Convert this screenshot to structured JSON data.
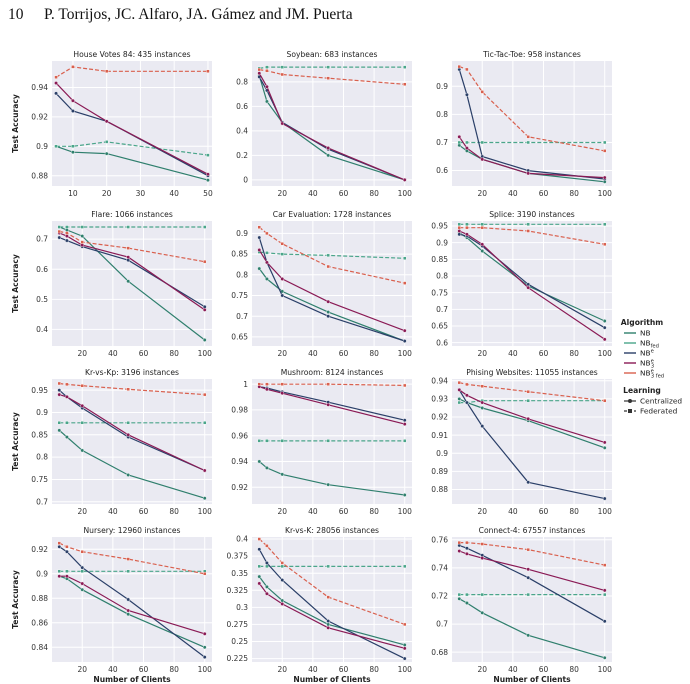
{
  "header": {
    "page_number": "10",
    "authors": "P. Torrijos, JC. Alfaro, JA. Gámez and JM. Puerta"
  },
  "colors": {
    "plot_bg": "#eaeaf2",
    "grid": "#ffffff"
  },
  "legend": {
    "algorithm_title": "Algorithm",
    "algorithms": [
      {
        "base": "NB",
        "sub": "",
        "sup": "",
        "color": "#2f7f6d"
      },
      {
        "base": "NB",
        "sub": "fed",
        "sup": "",
        "color": "#4aa58a"
      },
      {
        "base": "NB",
        "sub": "",
        "sup": "e",
        "color": "#2a3f68"
      },
      {
        "base": "NB",
        "sub": "3",
        "sup": "e",
        "color": "#8a1a55"
      },
      {
        "base": "NB",
        "sub": "3 fed",
        "sup": "e",
        "color": "#d9604e"
      }
    ],
    "learning_title": "Learning",
    "learning": [
      "Centralized",
      "Federated"
    ]
  },
  "chart_data": [
    {
      "type": "line",
      "title": "House Votes 84: 435 instances",
      "ylabel": "Test Accuracy",
      "xlabel": "",
      "x": [
        5,
        10,
        20,
        50
      ],
      "xticks": [
        10,
        20,
        30,
        40,
        50
      ],
      "xlim": [
        3.8,
        51.2
      ],
      "yticks": [
        0.88,
        0.9,
        0.92,
        0.94
      ],
      "ylim": [
        0.873,
        0.958
      ],
      "series": [
        {
          "name": "NB",
          "learning": "Centralized",
          "values": [
            0.9,
            0.896,
            0.895,
            0.877
          ]
        },
        {
          "name": "NB_fed",
          "learning": "Federated",
          "values": [
            0.9,
            0.9,
            0.903,
            0.894
          ]
        },
        {
          "name": "NB^e",
          "learning": "Centralized",
          "values": [
            0.936,
            0.924,
            0.917,
            0.88
          ]
        },
        {
          "name": "NB^e_3",
          "learning": "Centralized",
          "values": [
            0.943,
            0.931,
            0.917,
            0.881
          ]
        },
        {
          "name": "NB^e_3 fed",
          "learning": "Federated",
          "values": [
            0.947,
            0.954,
            0.951,
            0.951
          ]
        }
      ]
    },
    {
      "type": "line",
      "title": "Soybean: 683 instances",
      "ylabel": "",
      "xlabel": "",
      "x": [
        5,
        10,
        20,
        50,
        100
      ],
      "xticks": [
        20,
        40,
        60,
        80,
        100
      ],
      "xlim": [
        0.25,
        104.75
      ],
      "yticks": [
        0.0,
        0.2,
        0.4,
        0.6,
        0.8
      ],
      "ylim": [
        -0.05,
        0.97
      ],
      "series": [
        {
          "name": "NB",
          "learning": "Centralized",
          "values": [
            0.85,
            0.64,
            0.47,
            0.2,
            0.0
          ]
        },
        {
          "name": "NB_fed",
          "learning": "Federated",
          "values": [
            0.91,
            0.92,
            0.92,
            0.92,
            0.92
          ]
        },
        {
          "name": "NB^e",
          "learning": "Centralized",
          "values": [
            0.84,
            0.73,
            0.47,
            0.25,
            0.0
          ]
        },
        {
          "name": "NB^e_3",
          "learning": "Centralized",
          "values": [
            0.87,
            0.76,
            0.46,
            0.26,
            0.0
          ]
        },
        {
          "name": "NB^e_3 fed",
          "learning": "Federated",
          "values": [
            0.9,
            0.89,
            0.86,
            0.83,
            0.78
          ]
        }
      ]
    },
    {
      "type": "line",
      "title": "Tic-Tac-Toe: 958 instances",
      "ylabel": "",
      "xlabel": "",
      "x": [
        5,
        10,
        20,
        50,
        100
      ],
      "xticks": [
        20,
        40,
        60,
        80,
        100
      ],
      "xlim": [
        0.25,
        104.75
      ],
      "yticks": [
        0.6,
        0.7,
        0.8,
        0.9
      ],
      "ylim": [
        0.545,
        0.99
      ],
      "series": [
        {
          "name": "NB",
          "learning": "Centralized",
          "values": [
            0.69,
            0.67,
            0.64,
            0.59,
            0.56
          ]
        },
        {
          "name": "NB_fed",
          "learning": "Federated",
          "values": [
            0.7,
            0.7,
            0.7,
            0.7,
            0.7
          ]
        },
        {
          "name": "NB^e",
          "learning": "Centralized",
          "values": [
            0.96,
            0.87,
            0.65,
            0.6,
            0.57
          ]
        },
        {
          "name": "NB^e_3",
          "learning": "Centralized",
          "values": [
            0.72,
            0.68,
            0.64,
            0.59,
            0.575
          ]
        },
        {
          "name": "NB^e_3 fed",
          "learning": "Federated",
          "values": [
            0.97,
            0.96,
            0.88,
            0.72,
            0.67
          ]
        }
      ]
    },
    {
      "type": "line",
      "title": "Flare: 1066 instances",
      "ylabel": "Test Accuracy",
      "xlabel": "",
      "x": [
        5,
        10,
        20,
        50,
        100
      ],
      "xticks": [
        20,
        40,
        60,
        80,
        100
      ],
      "xlim": [
        0.25,
        104.75
      ],
      "yticks": [
        0.4,
        0.5,
        0.6,
        0.7
      ],
      "ylim": [
        0.345,
        0.76
      ],
      "series": [
        {
          "name": "NB",
          "learning": "Centralized",
          "values": [
            0.74,
            0.73,
            0.71,
            0.56,
            0.365
          ]
        },
        {
          "name": "NB_fed",
          "learning": "Federated",
          "values": [
            0.74,
            0.74,
            0.74,
            0.74,
            0.74
          ]
        },
        {
          "name": "NB^e",
          "learning": "Centralized",
          "values": [
            0.705,
            0.695,
            0.675,
            0.63,
            0.475
          ]
        },
        {
          "name": "NB^e_3",
          "learning": "Centralized",
          "values": [
            0.72,
            0.71,
            0.68,
            0.64,
            0.465
          ]
        },
        {
          "name": "NB^e_3 fed",
          "learning": "Federated",
          "values": [
            0.725,
            0.72,
            0.69,
            0.67,
            0.625
          ]
        }
      ]
    },
    {
      "type": "line",
      "title": "Car Evaluation: 1728 instances",
      "ylabel": "",
      "xlabel": "",
      "x": [
        5,
        10,
        20,
        50,
        100
      ],
      "xticks": [
        20,
        40,
        60,
        80,
        100
      ],
      "xlim": [
        0.25,
        104.75
      ],
      "yticks": [
        0.65,
        0.7,
        0.75,
        0.8,
        0.85,
        0.9
      ],
      "ylim": [
        0.628,
        0.93
      ],
      "series": [
        {
          "name": "NB",
          "learning": "Centralized",
          "values": [
            0.815,
            0.79,
            0.76,
            0.71,
            0.64
          ]
        },
        {
          "name": "NB_fed",
          "learning": "Federated",
          "values": [
            0.855,
            0.853,
            0.85,
            0.847,
            0.84
          ]
        },
        {
          "name": "NB^e",
          "learning": "Centralized",
          "values": [
            0.89,
            0.83,
            0.75,
            0.7,
            0.64
          ]
        },
        {
          "name": "NB^e_3",
          "learning": "Centralized",
          "values": [
            0.86,
            0.83,
            0.79,
            0.735,
            0.665
          ]
        },
        {
          "name": "NB^e_3 fed",
          "learning": "Federated",
          "values": [
            0.915,
            0.9,
            0.875,
            0.82,
            0.78
          ]
        }
      ]
    },
    {
      "type": "line",
      "title": "Splice: 3190 instances",
      "ylabel": "",
      "xlabel": "",
      "x": [
        5,
        10,
        20,
        50,
        100
      ],
      "xticks": [
        20,
        40,
        60,
        80,
        100
      ],
      "xlim": [
        0.25,
        104.75
      ],
      "yticks": [
        0.6,
        0.65,
        0.7,
        0.75,
        0.8,
        0.85,
        0.9,
        0.95
      ],
      "ylim": [
        0.59,
        0.965
      ],
      "series": [
        {
          "name": "NB",
          "learning": "Centralized",
          "values": [
            0.93,
            0.915,
            0.875,
            0.77,
            0.665
          ]
        },
        {
          "name": "NB_fed",
          "learning": "Federated",
          "values": [
            0.955,
            0.955,
            0.955,
            0.955,
            0.955
          ]
        },
        {
          "name": "NB^e",
          "learning": "Centralized",
          "values": [
            0.925,
            0.92,
            0.89,
            0.775,
            0.645
          ]
        },
        {
          "name": "NB^e_3",
          "learning": "Centralized",
          "values": [
            0.935,
            0.925,
            0.895,
            0.765,
            0.61
          ]
        },
        {
          "name": "NB^e_3 fed",
          "learning": "Federated",
          "values": [
            0.945,
            0.945,
            0.945,
            0.935,
            0.895
          ]
        }
      ]
    },
    {
      "type": "line",
      "title": "Kr-vs-Kp: 3196 instances",
      "ylabel": "Test Accuracy",
      "xlabel": "",
      "x": [
        5,
        10,
        20,
        50,
        100
      ],
      "xticks": [
        20,
        40,
        60,
        80,
        100
      ],
      "xlim": [
        0.25,
        104.75
      ],
      "yticks": [
        0.7,
        0.75,
        0.8,
        0.85,
        0.9,
        0.95
      ],
      "ylim": [
        0.695,
        0.975
      ],
      "series": [
        {
          "name": "NB",
          "learning": "Centralized",
          "values": [
            0.86,
            0.845,
            0.815,
            0.76,
            0.708
          ]
        },
        {
          "name": "NB_fed",
          "learning": "Federated",
          "values": [
            0.877,
            0.877,
            0.877,
            0.877,
            0.877
          ]
        },
        {
          "name": "NB^e",
          "learning": "Centralized",
          "values": [
            0.95,
            0.935,
            0.91,
            0.845,
            0.77
          ]
        },
        {
          "name": "NB^e_3",
          "learning": "Centralized",
          "values": [
            0.94,
            0.935,
            0.915,
            0.85,
            0.77
          ]
        },
        {
          "name": "NB^e_3 fed",
          "learning": "Federated",
          "values": [
            0.965,
            0.963,
            0.96,
            0.952,
            0.94
          ]
        }
      ]
    },
    {
      "type": "line",
      "title": "Mushroom: 8124 instances",
      "ylabel": "",
      "xlabel": "",
      "x": [
        5,
        10,
        20,
        50,
        100
      ],
      "xticks": [
        20,
        40,
        60,
        80,
        100
      ],
      "xlim": [
        0.25,
        104.75
      ],
      "yticks": [
        0.92,
        0.94,
        0.96,
        0.98,
        1.0
      ],
      "ylim": [
        0.907,
        1.004
      ],
      "series": [
        {
          "name": "NB",
          "learning": "Centralized",
          "values": [
            0.94,
            0.935,
            0.93,
            0.922,
            0.914
          ]
        },
        {
          "name": "NB_fed",
          "learning": "Federated",
          "values": [
            0.956,
            0.956,
            0.956,
            0.956,
            0.956
          ]
        },
        {
          "name": "NB^e",
          "learning": "Centralized",
          "values": [
            0.998,
            0.997,
            0.994,
            0.986,
            0.972
          ]
        },
        {
          "name": "NB^e_3",
          "learning": "Centralized",
          "values": [
            0.998,
            0.996,
            0.993,
            0.984,
            0.969
          ]
        },
        {
          "name": "NB^e_3 fed",
          "learning": "Federated",
          "values": [
            1.0,
            1.0,
            1.0,
            1.0,
            0.999
          ]
        }
      ]
    },
    {
      "type": "line",
      "title": "Phising Websites: 11055 instances",
      "ylabel": "",
      "xlabel": "",
      "x": [
        5,
        10,
        20,
        50,
        100
      ],
      "xticks": [
        20,
        40,
        60,
        80,
        100
      ],
      "xlim": [
        0.25,
        104.75
      ],
      "yticks": [
        0.88,
        0.89,
        0.9,
        0.91,
        0.92,
        0.93,
        0.94
      ],
      "ylim": [
        0.872,
        0.941
      ],
      "series": [
        {
          "name": "NB",
          "learning": "Centralized",
          "values": [
            0.93,
            0.928,
            0.925,
            0.918,
            0.903
          ]
        },
        {
          "name": "NB_fed",
          "learning": "Federated",
          "values": [
            0.928,
            0.928,
            0.929,
            0.929,
            0.929
          ]
        },
        {
          "name": "NB^e",
          "learning": "Centralized",
          "values": [
            0.935,
            0.928,
            0.915,
            0.884,
            0.875
          ]
        },
        {
          "name": "NB^e_3",
          "learning": "Centralized",
          "values": [
            0.935,
            0.932,
            0.928,
            0.919,
            0.906
          ]
        },
        {
          "name": "NB^e_3 fed",
          "learning": "Federated",
          "values": [
            0.939,
            0.938,
            0.937,
            0.934,
            0.929
          ]
        }
      ]
    },
    {
      "type": "line",
      "title": "Nursery: 12960 instances",
      "ylabel": "Test Accuracy",
      "xlabel": "Number of Clients",
      "x": [
        5,
        10,
        20,
        50,
        100
      ],
      "xticks": [
        20,
        40,
        60,
        80,
        100
      ],
      "xlim": [
        0.25,
        104.75
      ],
      "yticks": [
        0.84,
        0.86,
        0.88,
        0.9,
        0.92
      ],
      "ylim": [
        0.828,
        0.93
      ],
      "series": [
        {
          "name": "NB",
          "learning": "Centralized",
          "values": [
            0.898,
            0.896,
            0.887,
            0.867,
            0.84
          ]
        },
        {
          "name": "NB_fed",
          "learning": "Federated",
          "values": [
            0.902,
            0.902,
            0.902,
            0.902,
            0.902
          ]
        },
        {
          "name": "NB^e",
          "learning": "Centralized",
          "values": [
            0.922,
            0.918,
            0.905,
            0.879,
            0.832
          ]
        },
        {
          "name": "NB^e_3",
          "learning": "Centralized",
          "values": [
            0.898,
            0.898,
            0.892,
            0.87,
            0.851
          ]
        },
        {
          "name": "NB^e_3 fed",
          "learning": "Federated",
          "values": [
            0.925,
            0.922,
            0.918,
            0.912,
            0.9
          ]
        }
      ]
    },
    {
      "type": "line",
      "title": "Kr-vs-K: 28056 instances",
      "ylabel": "",
      "xlabel": "Number of Clients",
      "x": [
        5,
        10,
        20,
        50,
        100
      ],
      "xticks": [
        20,
        40,
        60,
        80,
        100
      ],
      "xlim": [
        0.25,
        104.75
      ],
      "yticks": [
        0.225,
        0.25,
        0.275,
        0.3,
        0.325,
        0.35,
        0.375,
        0.4
      ],
      "ylim": [
        0.22,
        0.403
      ],
      "series": [
        {
          "name": "NB",
          "learning": "Centralized",
          "values": [
            0.345,
            0.33,
            0.31,
            0.275,
            0.245
          ]
        },
        {
          "name": "NB_fed",
          "learning": "Federated",
          "values": [
            0.36,
            0.36,
            0.36,
            0.36,
            0.36
          ]
        },
        {
          "name": "NB^e",
          "learning": "Centralized",
          "values": [
            0.385,
            0.365,
            0.34,
            0.28,
            0.225
          ]
        },
        {
          "name": "NB^e_3",
          "learning": "Centralized",
          "values": [
            0.335,
            0.32,
            0.305,
            0.27,
            0.24
          ]
        },
        {
          "name": "NB^e_3 fed",
          "learning": "Federated",
          "values": [
            0.4,
            0.39,
            0.365,
            0.315,
            0.275
          ]
        }
      ]
    },
    {
      "type": "line",
      "title": "Connect-4: 67557 instances",
      "ylabel": "",
      "xlabel": "Number of Clients",
      "x": [
        5,
        10,
        20,
        50,
        100
      ],
      "xticks": [
        20,
        40,
        60,
        80,
        100
      ],
      "xlim": [
        0.25,
        104.75
      ],
      "yticks": [
        0.68,
        0.7,
        0.72,
        0.74,
        0.76
      ],
      "ylim": [
        0.673,
        0.762
      ],
      "series": [
        {
          "name": "NB",
          "learning": "Centralized",
          "values": [
            0.718,
            0.715,
            0.708,
            0.692,
            0.676
          ]
        },
        {
          "name": "NB_fed",
          "learning": "Federated",
          "values": [
            0.721,
            0.721,
            0.721,
            0.721,
            0.721
          ]
        },
        {
          "name": "NB^e",
          "learning": "Centralized",
          "values": [
            0.756,
            0.754,
            0.749,
            0.733,
            0.702
          ]
        },
        {
          "name": "NB^e_3",
          "learning": "Centralized",
          "values": [
            0.752,
            0.75,
            0.747,
            0.739,
            0.724
          ]
        },
        {
          "name": "NB^e_3 fed",
          "learning": "Federated",
          "values": [
            0.758,
            0.758,
            0.757,
            0.753,
            0.742
          ]
        }
      ]
    }
  ]
}
